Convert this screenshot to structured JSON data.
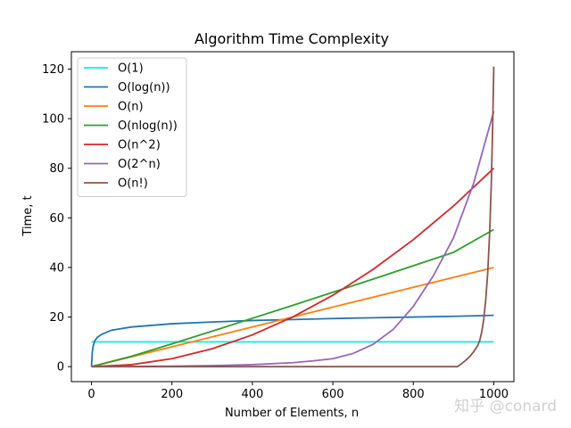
{
  "chart_data": {
    "type": "line",
    "title": "Algorithm Time Complexity",
    "xlabel": "Number of Elements, n",
    "ylabel": "Time, t",
    "xlim": [
      -50,
      1050
    ],
    "ylim": [
      -6.05,
      127.0
    ],
    "xticks": [
      0,
      200,
      400,
      600,
      800,
      1000
    ],
    "yticks": [
      0,
      20,
      40,
      60,
      80,
      100,
      120
    ],
    "grid": false,
    "legend_position": "upper left",
    "series": [
      {
        "name": "O(1)",
        "color": "#00f0f0",
        "x": [
          0,
          1000
        ],
        "y": [
          10,
          10
        ]
      },
      {
        "name": "O(log(n))",
        "color": "#1f77b4",
        "x": [
          0,
          1,
          2,
          4,
          8,
          15,
          25,
          50,
          100,
          200,
          300,
          400,
          500,
          600,
          700,
          800,
          900,
          1000
        ],
        "y": [
          0,
          2.9,
          5.7,
          8.2,
          10.4,
          11.9,
          13.0,
          14.7,
          16.0,
          17.3,
          18.0,
          18.6,
          19.0,
          19.4,
          19.7,
          20.0,
          20.3,
          20.7
        ]
      },
      {
        "name": "O(n)",
        "color": "#ff7f0e",
        "x": [
          0,
          1000
        ],
        "y": [
          0,
          40
        ]
      },
      {
        "name": "O(nlog(n))",
        "color": "#2ca02c",
        "x": [
          0,
          100,
          200,
          300,
          400,
          500,
          600,
          700,
          800,
          900,
          1000
        ],
        "y": [
          0,
          4.2,
          9.2,
          14.3,
          19.5,
          24.7,
          30.0,
          35.3,
          40.7,
          46.1,
          55.3
        ]
      },
      {
        "name": "O(n^2)",
        "color": "#d62728",
        "x": [
          0,
          100,
          200,
          300,
          400,
          500,
          600,
          700,
          800,
          900,
          1000
        ],
        "y": [
          0,
          0.8,
          3.2,
          7.2,
          12.8,
          20.0,
          28.8,
          39.2,
          51.2,
          64.8,
          80.0
        ]
      },
      {
        "name": "O(2^n)",
        "color": "#9467bd",
        "x": [
          0,
          100,
          200,
          300,
          400,
          500,
          550,
          600,
          650,
          700,
          750,
          800,
          850,
          900,
          950,
          1000
        ],
        "y": [
          0,
          0.1,
          0.2,
          0.4,
          0.8,
          1.6,
          2.3,
          3.2,
          5.3,
          9.0,
          15.0,
          24.3,
          36.7,
          52.0,
          74.0,
          103.0
        ]
      },
      {
        "name": "O(n!)",
        "color": "#8c564b",
        "x": [
          0,
          910,
          920,
          930,
          940,
          950,
          960,
          965,
          970,
          975,
          980,
          985,
          990,
          994,
          997,
          1000
        ],
        "y": [
          0,
          0,
          1.2,
          2.5,
          4.0,
          6.0,
          8.5,
          10.5,
          14.0,
          19.0,
          27.0,
          38.0,
          55.0,
          75.0,
          95.0,
          121.0
        ]
      }
    ]
  },
  "watermark": "知乎 @conard"
}
